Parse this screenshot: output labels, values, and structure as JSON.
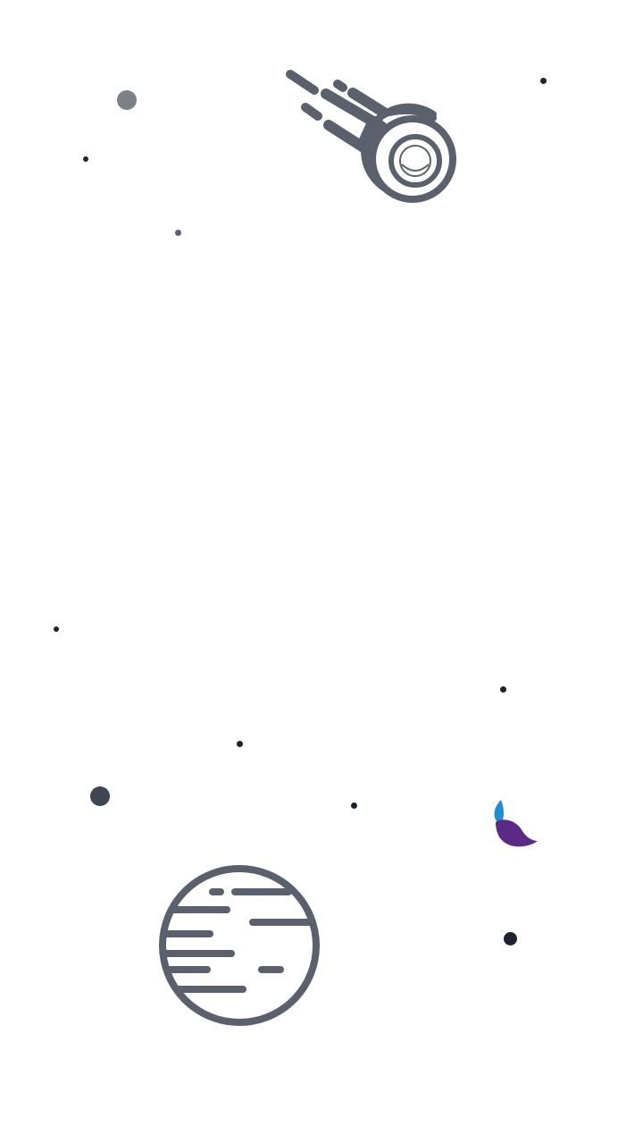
{
  "colors": {
    "background": "#ffffff",
    "illustration": "#5a616c",
    "star_dark": "#1c2230",
    "star_mid": "#3f4652",
    "star_light": "#7b8089",
    "leaf_blue": "#1f8fd1",
    "leaf_purple": "#5b2a86"
  },
  "icons": {
    "comet": "comet-icon",
    "planet": "planet-icon",
    "logo": "leaf-logo"
  }
}
